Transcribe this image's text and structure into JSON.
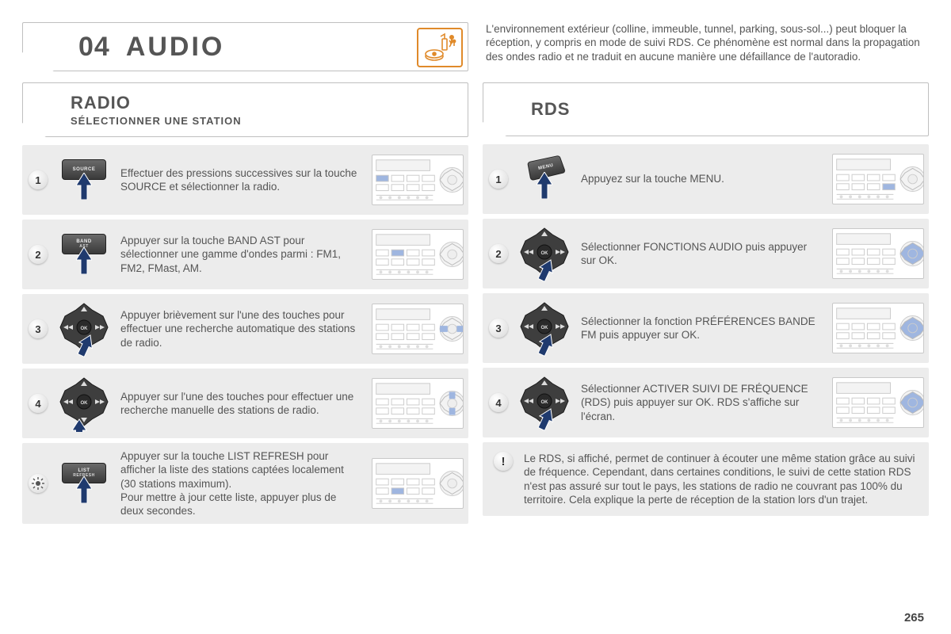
{
  "chapter": {
    "number": "04",
    "title": "AUDIO"
  },
  "page_number": "265",
  "colors": {
    "accent": "#e08a2a",
    "arrow": "#1f3a6e",
    "highlight": "#9fb6e0",
    "panel_border": "#bfbfbf",
    "step_bg": "#ececec"
  },
  "left": {
    "heading": "RADIO",
    "subheading": "SÉLECTIONNER UNE STATION",
    "steps": [
      {
        "num": "1",
        "control": "button",
        "key_label": "SOURCE",
        "text": "Effectuer des pressions successives sur la touche SOURCE et sélectionner la radio."
      },
      {
        "num": "2",
        "control": "button",
        "key_label": "BAND",
        "key_sub": "AST",
        "text": "Appuyer sur la touche BAND AST pour sélectionner une gamme d'ondes parmi : FM1, FM2, FMast, AM."
      },
      {
        "num": "3",
        "control": "dpad",
        "arrow_dir": "right",
        "text": "Appuyer brièvement sur l'une des touches pour effectuer une recherche automatique des stations de radio."
      },
      {
        "num": "4",
        "control": "dpad",
        "arrow_dir": "up",
        "text": "Appuyer sur l'une des touches pour effectuer une recherche manuelle des stations de radio."
      },
      {
        "num": "tip",
        "control": "button",
        "key_label": "LIST",
        "key_sub": "REFRESH",
        "text": "Appuyer sur la touche LIST REFRESH pour afficher la liste des stations captées localement (30 stations maximum).\nPour mettre à jour cette liste, appuyer plus de deux secondes."
      }
    ]
  },
  "right": {
    "intro": "L'environnement extérieur (colline, immeuble, tunnel, parking, sous-sol...) peut bloquer la réception, y compris en mode de suivi RDS. Ce phénomène est normal dans la propagation des ondes radio et ne traduit en aucune manière une défaillance de l'autoradio.",
    "heading": "RDS",
    "steps": [
      {
        "num": "1",
        "control": "menu",
        "key_label": "MENU",
        "text": "Appuyez sur la touche MENU."
      },
      {
        "num": "2",
        "control": "dpad",
        "arrow_dir": "right",
        "text": "Sélectionner FONCTIONS AUDIO puis appuyer sur OK."
      },
      {
        "num": "3",
        "control": "dpad",
        "arrow_dir": "right",
        "text": "Sélectionner la fonction PRÉFÉRENCES BANDE FM puis appuyer sur OK."
      },
      {
        "num": "4",
        "control": "dpad",
        "arrow_dir": "right",
        "text": "Sélectionner ACTIVER SUIVI DE FRÉQUENCE (RDS) puis appuyer sur OK. RDS s'affiche sur l'écran."
      }
    ],
    "info": {
      "badge": "!",
      "text": "Le RDS, si affiché, permet de continuer à écouter une même station grâce au suivi de fréquence. Cependant, dans certaines conditions, le suivi de cette station RDS n'est pas assuré sur tout le pays, les stations de radio ne couvrant pas 100% du territoire. Cela explique la perte de réception de la station lors d'un trajet."
    }
  }
}
